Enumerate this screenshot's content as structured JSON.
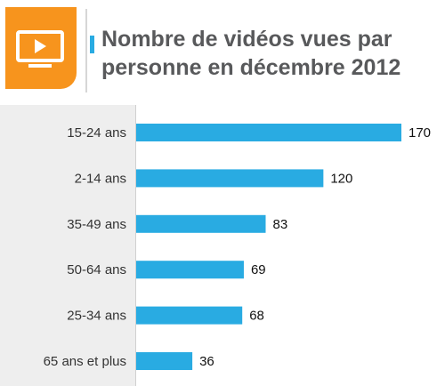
{
  "header": {
    "title_line1": "Nombre de vidéos vues par",
    "title_line2": "personne en décembre 2012",
    "icon": "tv-play-icon"
  },
  "colors": {
    "bar": "#29abe2",
    "badge": "#f7941d",
    "title": "#58595b",
    "label_panel": "#eeeeee"
  },
  "chart_data": {
    "type": "bar",
    "orientation": "horizontal",
    "title": "Nombre de vidéos vues par personne en décembre 2012",
    "categories": [
      "15-24 ans",
      "2-14 ans",
      "35-49 ans",
      "50-64 ans",
      "25-34 ans",
      "65 ans et plus"
    ],
    "values": [
      170,
      120,
      83,
      69,
      68,
      36
    ],
    "xlabel": "",
    "ylabel": "",
    "xlim": [
      0,
      170
    ],
    "grid": false,
    "legend": "none"
  }
}
